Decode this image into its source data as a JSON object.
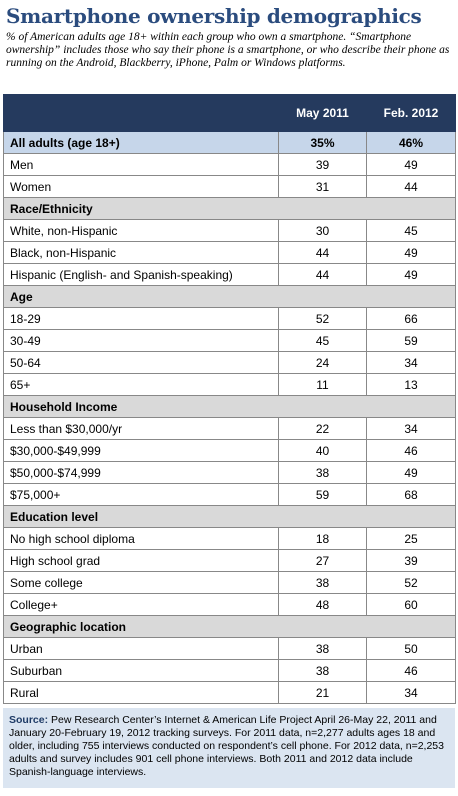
{
  "header": {
    "title": "Smartphone ownership demographics",
    "subtitle": "% of American adults age 18+ within each group who own a smartphone. “Smartphone ownership” includes those who say their phone is a smartphone, or who describe their phone as running on the Android, Blackberry, iPhone, Palm or Windows platforms."
  },
  "table": {
    "columns": [
      "May 2011",
      "Feb. 2012"
    ],
    "total": [
      "All adults (age 18+)",
      "35%",
      "46%"
    ],
    "groups": [
      {
        "rows": [
          [
            "Men",
            39,
            49
          ],
          [
            "Women",
            31,
            44
          ]
        ]
      },
      {
        "title": "Race/Ethnicity",
        "rows": [
          [
            "White, non-Hispanic",
            30,
            45
          ],
          [
            "Black, non-Hispanic",
            44,
            49
          ],
          [
            "Hispanic (English- and Spanish-speaking)",
            44,
            49
          ]
        ]
      },
      {
        "title": "Age",
        "rows": [
          [
            "18-29",
            52,
            66
          ],
          [
            "30-49",
            45,
            59
          ],
          [
            "50-64",
            24,
            34
          ],
          [
            "65+",
            11,
            13
          ]
        ]
      },
      {
        "title": "Household Income",
        "rows": [
          [
            "Less than $30,000/yr",
            22,
            34
          ],
          [
            "$30,000-$49,999",
            40,
            46
          ],
          [
            "$50,000-$74,999",
            38,
            49
          ],
          [
            "$75,000+",
            59,
            68
          ]
        ]
      },
      {
        "title": "Education level",
        "rows": [
          [
            "No high school diploma",
            18,
            25
          ],
          [
            "High school grad",
            27,
            39
          ],
          [
            "Some college",
            38,
            52
          ],
          [
            "College+",
            48,
            60
          ]
        ]
      },
      {
        "title": "Geographic location",
        "rows": [
          [
            "Urban",
            38,
            50
          ],
          [
            "Suburban",
            38,
            46
          ],
          [
            "Rural",
            21,
            34
          ]
        ]
      }
    ]
  },
  "footer": {
    "label": "Source:",
    "text": "Pew Research Center’s Internet & American Life Project April 26-May 22, 2011 and January 20-February 19, 2012 tracking surveys. For 2011 data, n=2,277 adults ages 18 and older, including 755 interviews conducted on respondent’s cell phone. For 2012 data, n=2,253 adults and survey includes 901 cell phone interviews. Both 2011 and 2012 data include Spanish-language interviews."
  }
}
